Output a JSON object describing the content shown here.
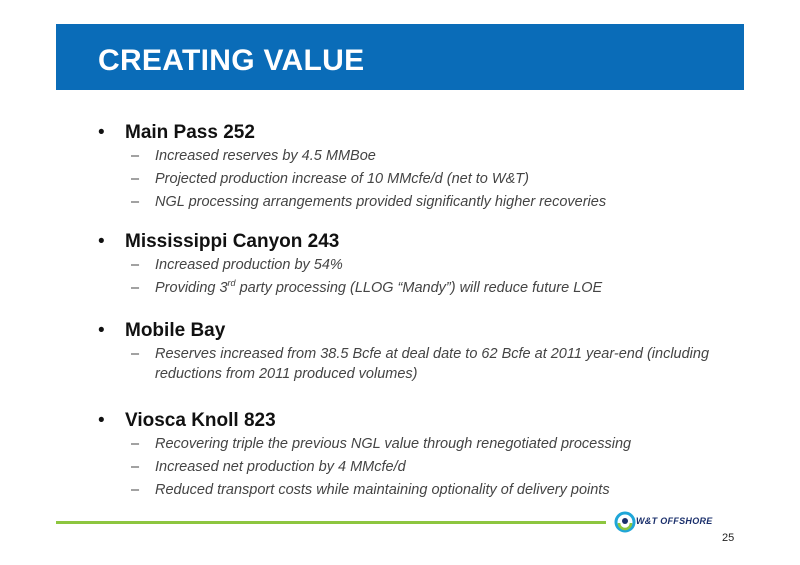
{
  "title": "CREATING VALUE",
  "bullet_glyph": "•",
  "dash_glyph": "–",
  "sections": [
    {
      "heading": "Main Pass 252",
      "items": [
        "Increased reserves by 4.5 MMBoe",
        "Projected production increase of 10 MMcfe/d (net to W&T)",
        "NGL processing arrangements provided significantly higher recoveries"
      ]
    },
    {
      "heading": "Mississippi Canyon 243",
      "items": [
        "Increased production by 54%",
        {
          "before": "Providing 3",
          "sup": "rd",
          "after": " party processing (LLOG “Mandy”) will reduce future LOE"
        }
      ]
    },
    {
      "heading": "Mobile Bay",
      "items": [
        "Reserves increased from 38.5 Bcfe at deal date to 62 Bcfe at 2011 year-end (including reductions from 2011 produced volumes)"
      ]
    },
    {
      "heading": "Viosca Knoll 823",
      "items": [
        "Recovering triple the previous NGL value through renegotiated processing",
        "Increased net production by 4 MMcfe/d",
        "Reduced transport costs while maintaining optionality of delivery points"
      ]
    }
  ],
  "footer": {
    "logo_text": "W&T OFFSHORE",
    "logo_icon": "wt-offshore-swirl-icon",
    "page_number": "25"
  },
  "colors": {
    "title_bar": "#0a6cb8",
    "footer_line": "#8dc63f",
    "logo_navy": "#1a2f6b",
    "logo_cyan": "#1fa6d8",
    "logo_green": "#8dc63f"
  }
}
